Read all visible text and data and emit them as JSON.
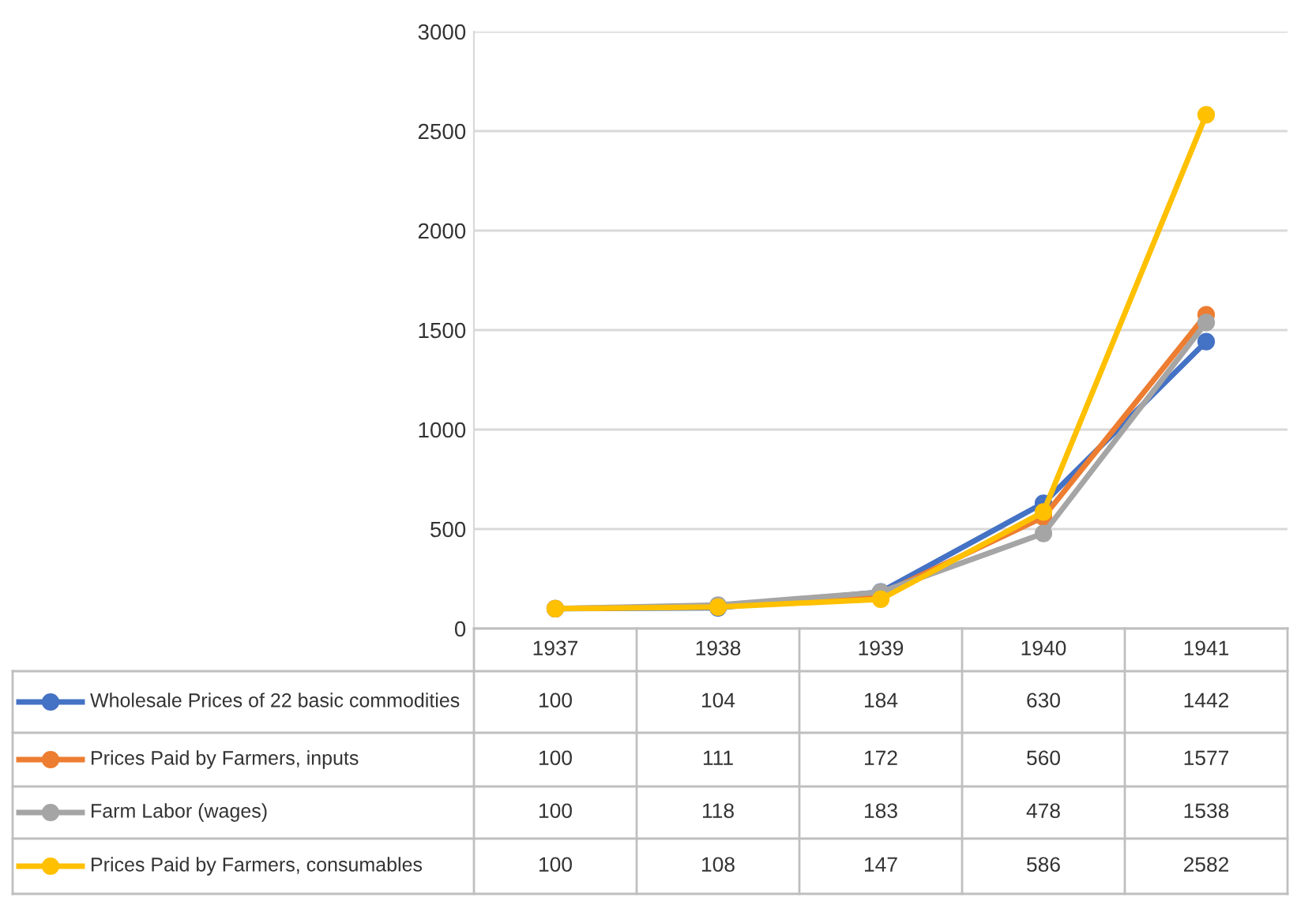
{
  "chart_data": {
    "type": "line",
    "categories": [
      "1937",
      "1938",
      "1939",
      "1940",
      "1941"
    ],
    "series": [
      {
        "name": "Wholesale Prices of 22 basic commodities",
        "color": "#4472c4",
        "values": [
          100,
          104,
          184,
          630,
          1442
        ]
      },
      {
        "name": "Prices Paid by Farmers, inputs",
        "color": "#ed7d31",
        "values": [
          100,
          111,
          172,
          560,
          1577
        ]
      },
      {
        "name": "Farm Labor (wages)",
        "color": "#a5a5a5",
        "values": [
          100,
          118,
          183,
          478,
          1538
        ]
      },
      {
        "name": "Prices Paid by Farmers, consumables",
        "color": "#ffc000",
        "values": [
          100,
          108,
          147,
          586,
          2582
        ]
      }
    ],
    "ylim": [
      0,
      3000
    ],
    "yticks": [
      0,
      500,
      1000,
      1500,
      2000,
      2500,
      3000
    ],
    "grid": "y",
    "marker": "circle",
    "line_style": "solid",
    "legend": "bottom",
    "data_labels": true
  }
}
